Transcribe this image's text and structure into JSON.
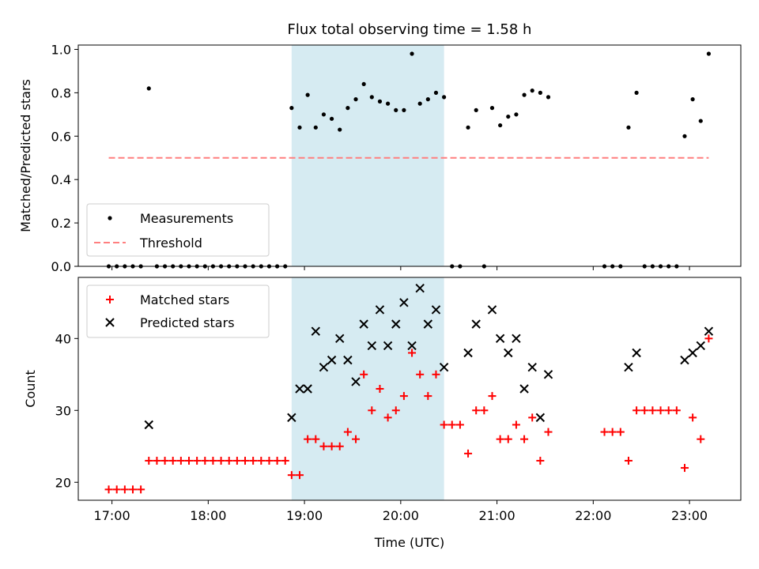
{
  "chart_data": [
    {
      "type": "scatter",
      "title": "Flux total observing time = 1.58 h",
      "xlabel": "",
      "ylabel": "Matched/Predicted stars",
      "xlim": [
        "16:39",
        "23:32"
      ],
      "ylim": [
        0,
        1.02
      ],
      "yticks": [
        "0.0",
        "0.2",
        "0.4",
        "0.6",
        "0.8",
        "1.0"
      ],
      "shaded_region": [
        "18:52",
        "20:27"
      ],
      "shaded_color": "#add8e6",
      "legend_position": "lower-left",
      "series": [
        {
          "name": "Measurements",
          "marker": "dot",
          "color": "#000000",
          "points": [
            [
              "16:58",
              0
            ],
            [
              "17:03",
              0
            ],
            [
              "17:08",
              0
            ],
            [
              "17:13",
              0
            ],
            [
              "17:18",
              0
            ],
            [
              "17:23",
              0.82
            ],
            [
              "17:28",
              0
            ],
            [
              "17:33",
              0
            ],
            [
              "17:38",
              0
            ],
            [
              "17:43",
              0
            ],
            [
              "17:48",
              0
            ],
            [
              "17:53",
              0
            ],
            [
              "17:58",
              0
            ],
            [
              "18:03",
              0
            ],
            [
              "18:08",
              0
            ],
            [
              "18:13",
              0
            ],
            [
              "18:18",
              0
            ],
            [
              "18:23",
              0
            ],
            [
              "18:28",
              0
            ],
            [
              "18:33",
              0
            ],
            [
              "18:38",
              0
            ],
            [
              "18:43",
              0
            ],
            [
              "18:48",
              0
            ],
            [
              "18:52",
              0.73
            ],
            [
              "18:57",
              0.64
            ],
            [
              "19:02",
              0.79
            ],
            [
              "19:07",
              0.64
            ],
            [
              "19:12",
              0.7
            ],
            [
              "19:17",
              0.68
            ],
            [
              "19:22",
              0.63
            ],
            [
              "19:27",
              0.73
            ],
            [
              "19:32",
              0.77
            ],
            [
              "19:37",
              0.84
            ],
            [
              "19:42",
              0.78
            ],
            [
              "19:47",
              0.76
            ],
            [
              "19:52",
              0.75
            ],
            [
              "19:57",
              0.72
            ],
            [
              "20:02",
              0.72
            ],
            [
              "20:07",
              0.98
            ],
            [
              "20:12",
              0.75
            ],
            [
              "20:17",
              0.77
            ],
            [
              "20:22",
              0.8
            ],
            [
              "20:27",
              0.78
            ],
            [
              "20:32",
              0
            ],
            [
              "20:37",
              0
            ],
            [
              "20:42",
              0.64
            ],
            [
              "20:47",
              0.72
            ],
            [
              "20:52",
              0
            ],
            [
              "20:57",
              0.73
            ],
            [
              "21:02",
              0.65
            ],
            [
              "21:07",
              0.69
            ],
            [
              "21:12",
              0.7
            ],
            [
              "21:17",
              0.79
            ],
            [
              "21:22",
              0.81
            ],
            [
              "21:27",
              0.8
            ],
            [
              "21:32",
              0.78
            ],
            [
              "22:07",
              0
            ],
            [
              "22:12",
              0
            ],
            [
              "22:17",
              0
            ],
            [
              "22:22",
              0.64
            ],
            [
              "22:27",
              0.8
            ],
            [
              "22:32",
              0
            ],
            [
              "22:37",
              0
            ],
            [
              "22:42",
              0
            ],
            [
              "22:47",
              0
            ],
            [
              "22:52",
              0
            ],
            [
              "22:57",
              0.6
            ],
            [
              "23:02",
              0.77
            ],
            [
              "23:07",
              0.67
            ],
            [
              "23:12",
              0.98
            ]
          ]
        },
        {
          "name": "Threshold",
          "marker": "dashed-line",
          "color": "#ff7f7f",
          "points": [
            [
              "16:58",
              0.5
            ],
            [
              "23:12",
              0.5
            ]
          ]
        }
      ]
    },
    {
      "type": "scatter",
      "title": "",
      "xlabel": "Time (UTC)",
      "ylabel": "Count",
      "xlim": [
        "16:39",
        "23:32"
      ],
      "ylim": [
        17.5,
        48.5
      ],
      "yticks": [
        "20",
        "30",
        "40"
      ],
      "xticks": [
        "17:00",
        "18:00",
        "19:00",
        "20:00",
        "21:00",
        "22:00",
        "23:00"
      ],
      "shaded_region": [
        "18:52",
        "20:27"
      ],
      "shaded_color": "#add8e6",
      "legend_position": "upper-left",
      "series": [
        {
          "name": "Matched stars",
          "marker": "plus",
          "color": "#ff0000",
          "points": [
            [
              "16:58",
              19
            ],
            [
              "17:03",
              19
            ],
            [
              "17:08",
              19
            ],
            [
              "17:13",
              19
            ],
            [
              "17:18",
              19
            ],
            [
              "17:23",
              23
            ],
            [
              "17:28",
              23
            ],
            [
              "17:33",
              23
            ],
            [
              "17:38",
              23
            ],
            [
              "17:43",
              23
            ],
            [
              "17:48",
              23
            ],
            [
              "17:53",
              23
            ],
            [
              "17:58",
              23
            ],
            [
              "18:03",
              23
            ],
            [
              "18:08",
              23
            ],
            [
              "18:13",
              23
            ],
            [
              "18:18",
              23
            ],
            [
              "18:23",
              23
            ],
            [
              "18:28",
              23
            ],
            [
              "18:33",
              23
            ],
            [
              "18:38",
              23
            ],
            [
              "18:43",
              23
            ],
            [
              "18:48",
              23
            ],
            [
              "18:52",
              21
            ],
            [
              "18:57",
              21
            ],
            [
              "19:02",
              26
            ],
            [
              "19:07",
              26
            ],
            [
              "19:12",
              25
            ],
            [
              "19:17",
              25
            ],
            [
              "19:22",
              25
            ],
            [
              "19:27",
              27
            ],
            [
              "19:32",
              26
            ],
            [
              "19:37",
              35
            ],
            [
              "19:42",
              30
            ],
            [
              "19:47",
              33
            ],
            [
              "19:52",
              29
            ],
            [
              "19:57",
              30
            ],
            [
              "20:02",
              32
            ],
            [
              "20:07",
              38
            ],
            [
              "20:12",
              35
            ],
            [
              "20:17",
              32
            ],
            [
              "20:22",
              35
            ],
            [
              "20:27",
              28
            ],
            [
              "20:32",
              28
            ],
            [
              "20:37",
              28
            ],
            [
              "20:42",
              24
            ],
            [
              "20:47",
              30
            ],
            [
              "20:52",
              30
            ],
            [
              "20:57",
              32
            ],
            [
              "21:02",
              26
            ],
            [
              "21:07",
              26
            ],
            [
              "21:12",
              28
            ],
            [
              "21:17",
              26
            ],
            [
              "21:22",
              29
            ],
            [
              "21:27",
              23
            ],
            [
              "21:32",
              27
            ],
            [
              "22:07",
              27
            ],
            [
              "22:12",
              27
            ],
            [
              "22:17",
              27
            ],
            [
              "22:22",
              23
            ],
            [
              "22:27",
              30
            ],
            [
              "22:32",
              30
            ],
            [
              "22:37",
              30
            ],
            [
              "22:42",
              30
            ],
            [
              "22:47",
              30
            ],
            [
              "22:52",
              30
            ],
            [
              "22:57",
              22
            ],
            [
              "23:02",
              29
            ],
            [
              "23:07",
              26
            ],
            [
              "23:12",
              40
            ]
          ]
        },
        {
          "name": "Predicted stars",
          "marker": "x",
          "color": "#000000",
          "points": [
            [
              "17:23",
              28
            ],
            [
              "18:52",
              29
            ],
            [
              "18:57",
              33
            ],
            [
              "19:02",
              33
            ],
            [
              "19:07",
              41
            ],
            [
              "19:12",
              36
            ],
            [
              "19:17",
              37
            ],
            [
              "19:22",
              40
            ],
            [
              "19:27",
              37
            ],
            [
              "19:32",
              34
            ],
            [
              "19:37",
              42
            ],
            [
              "19:42",
              39
            ],
            [
              "19:47",
              44
            ],
            [
              "19:52",
              39
            ],
            [
              "19:57",
              42
            ],
            [
              "20:02",
              45
            ],
            [
              "20:07",
              39
            ],
            [
              "20:12",
              47
            ],
            [
              "20:17",
              42
            ],
            [
              "20:22",
              44
            ],
            [
              "20:27",
              36
            ],
            [
              "20:42",
              38
            ],
            [
              "20:47",
              42
            ],
            [
              "20:57",
              44
            ],
            [
              "21:02",
              40
            ],
            [
              "21:07",
              38
            ],
            [
              "21:12",
              40
            ],
            [
              "21:17",
              33
            ],
            [
              "21:22",
              36
            ],
            [
              "21:27",
              29
            ],
            [
              "21:32",
              35
            ],
            [
              "22:22",
              36
            ],
            [
              "22:27",
              38
            ],
            [
              "22:57",
              37
            ],
            [
              "23:02",
              38
            ],
            [
              "23:07",
              39
            ],
            [
              "23:12",
              41
            ]
          ]
        }
      ]
    }
  ]
}
